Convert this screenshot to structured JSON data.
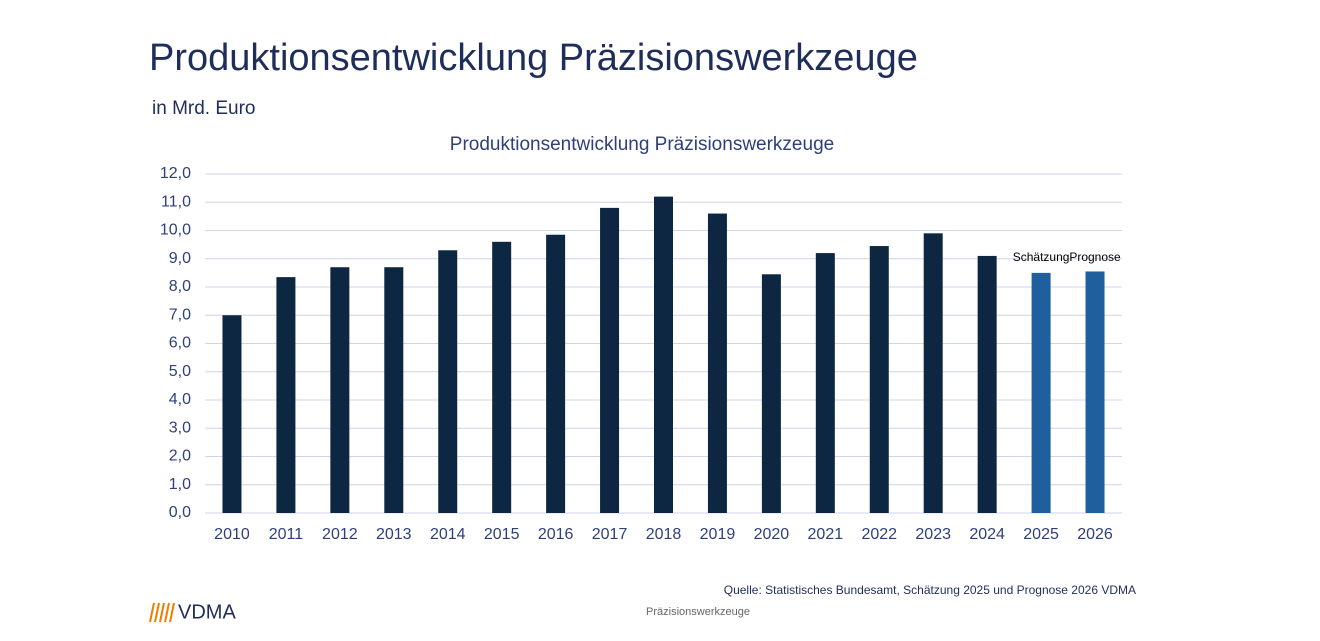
{
  "slide": {
    "title": "Produktionsentwicklung Präzisionswerkzeuge",
    "subtitle": "in Mrd. Euro",
    "source": "Quelle: Statistisches Bundesamt, Schätzung 2025 und Prognose 2026 VDMA",
    "footer": "Präzisionswerkzeuge",
    "logo": "VDMA"
  },
  "chart_data": {
    "type": "bar",
    "title": "Produktionsentwicklung  Präzisionswerkzeuge",
    "categories": [
      "2010",
      "2011",
      "2012",
      "2013",
      "2014",
      "2015",
      "2016",
      "2017",
      "2018",
      "2019",
      "2020",
      "2021",
      "2022",
      "2023",
      "2024",
      "2025",
      "2026"
    ],
    "values": [
      7.0,
      8.35,
      8.7,
      8.7,
      9.3,
      9.6,
      9.85,
      10.8,
      11.2,
      10.6,
      8.45,
      9.2,
      9.45,
      9.9,
      9.1,
      8.5,
      8.55
    ],
    "colors": [
      "#0d2642",
      "#0d2642",
      "#0d2642",
      "#0d2642",
      "#0d2642",
      "#0d2642",
      "#0d2642",
      "#0d2642",
      "#0d2642",
      "#0d2642",
      "#0d2642",
      "#0d2642",
      "#0d2642",
      "#0d2642",
      "#0d2642",
      "#1f5f9e",
      "#1f5f9e"
    ],
    "annotations": [
      {
        "text": "Schätzung",
        "category": "2025"
      },
      {
        "text": "Prognose",
        "category": "2026"
      }
    ],
    "ylim": [
      0,
      12
    ],
    "yticks": [
      {
        "value": 0,
        "label": "0,0"
      },
      {
        "value": 1,
        "label": "1,0"
      },
      {
        "value": 2,
        "label": "2,0"
      },
      {
        "value": 3,
        "label": "3,0"
      },
      {
        "value": 4,
        "label": "4,0"
      },
      {
        "value": 5,
        "label": "5,0"
      },
      {
        "value": 6,
        "label": "6,0"
      },
      {
        "value": 7,
        "label": "7,0"
      },
      {
        "value": 8,
        "label": "8,0"
      },
      {
        "value": 9,
        "label": "9,0"
      },
      {
        "value": 10,
        "label": "10,0"
      },
      {
        "value": 11,
        "label": "11,0"
      },
      {
        "value": 12,
        "label": "12,0"
      }
    ],
    "grid": true
  }
}
